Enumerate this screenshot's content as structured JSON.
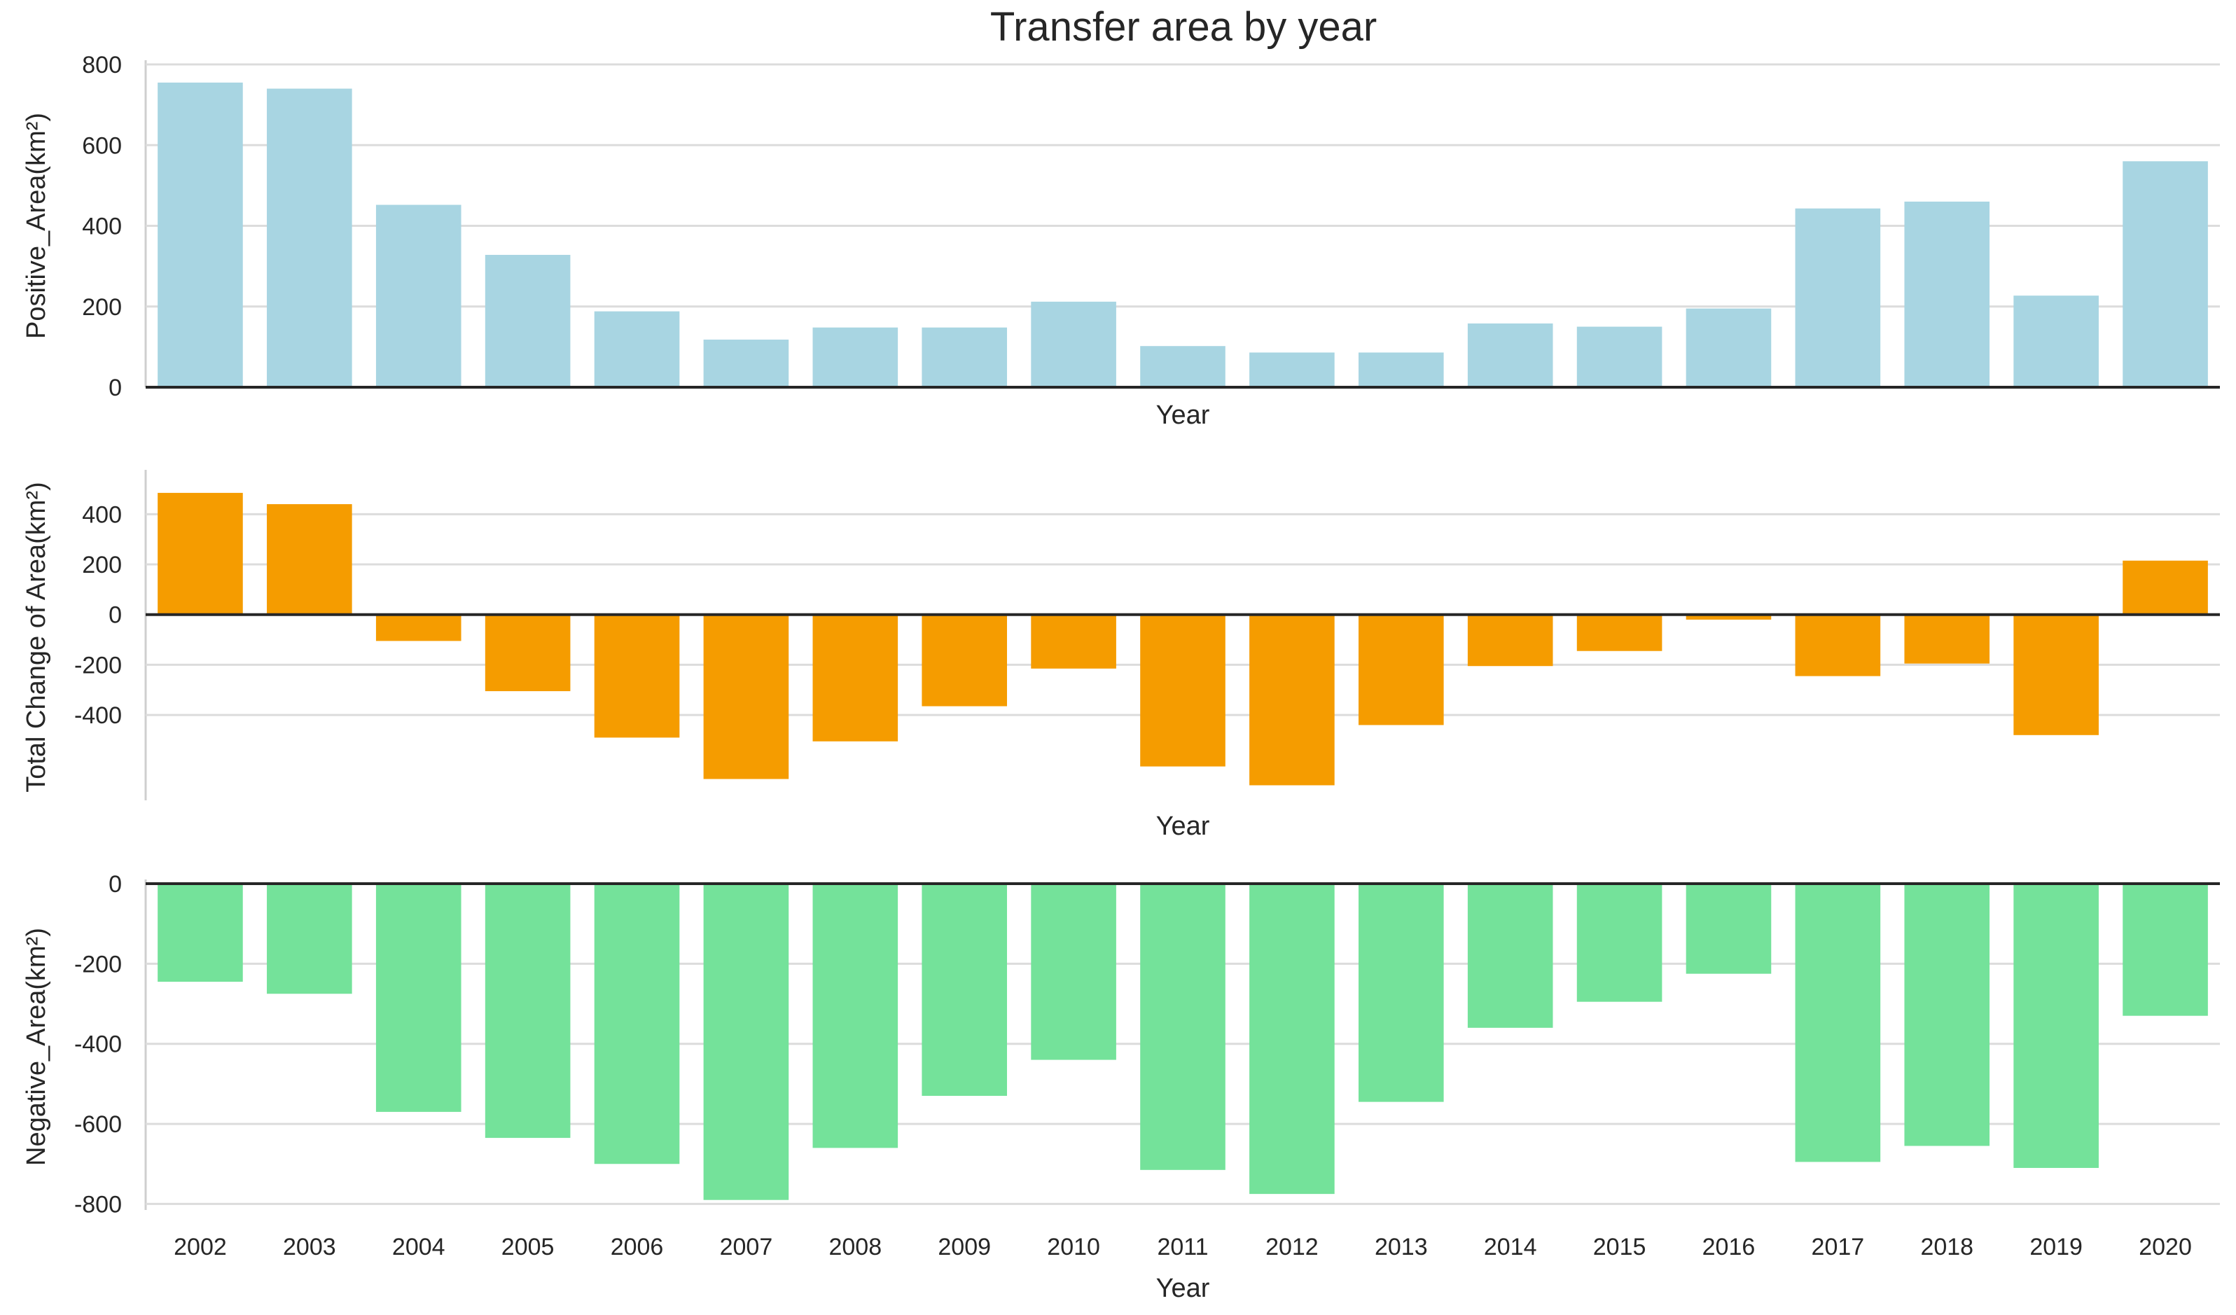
{
  "chart_data": {
    "type": "bar",
    "title": "Transfer area by year",
    "categories": [
      "2002",
      "2003",
      "2004",
      "2005",
      "2006",
      "2007",
      "2008",
      "2009",
      "2010",
      "2011",
      "2012",
      "2013",
      "2014",
      "2015",
      "2016",
      "2017",
      "2018",
      "2019",
      "2020"
    ],
    "panels": [
      {
        "name": "positive",
        "ylabel": "Positive_Area(km²)",
        "xlabel": "Year",
        "color": "#a8d5e2",
        "ylim": [
          0,
          800
        ],
        "yticks": [
          0,
          200,
          400,
          600,
          800
        ],
        "show_xticks": false,
        "values": [
          755,
          740,
          452,
          328,
          188,
          118,
          148,
          148,
          212,
          102,
          86,
          86,
          158,
          150,
          195,
          443,
          460,
          227,
          560
        ]
      },
      {
        "name": "total",
        "ylabel": "Total Change of Area(km²)",
        "xlabel": "Year",
        "color": "#f59c00",
        "ylim": [
          -740,
          560
        ],
        "yticks": [
          -400,
          -200,
          0,
          200,
          400
        ],
        "show_xticks": false,
        "values": [
          485,
          440,
          -105,
          -305,
          -490,
          -655,
          -505,
          -365,
          -215,
          -605,
          -680,
          -440,
          -205,
          -145,
          -20,
          -245,
          -195,
          -480,
          215
        ]
      },
      {
        "name": "negative",
        "ylabel": "Negative_Area(km²)",
        "xlabel": "Year",
        "color": "#74e29a",
        "ylim": [
          -815,
          0
        ],
        "yticks": [
          -800,
          -600,
          -400,
          -200,
          0
        ],
        "show_xticks": true,
        "values": [
          -245,
          -275,
          -570,
          -635,
          -700,
          -790,
          -660,
          -530,
          -440,
          -715,
          -775,
          -545,
          -360,
          -295,
          -225,
          -695,
          -655,
          -710,
          -330
        ]
      }
    ]
  }
}
